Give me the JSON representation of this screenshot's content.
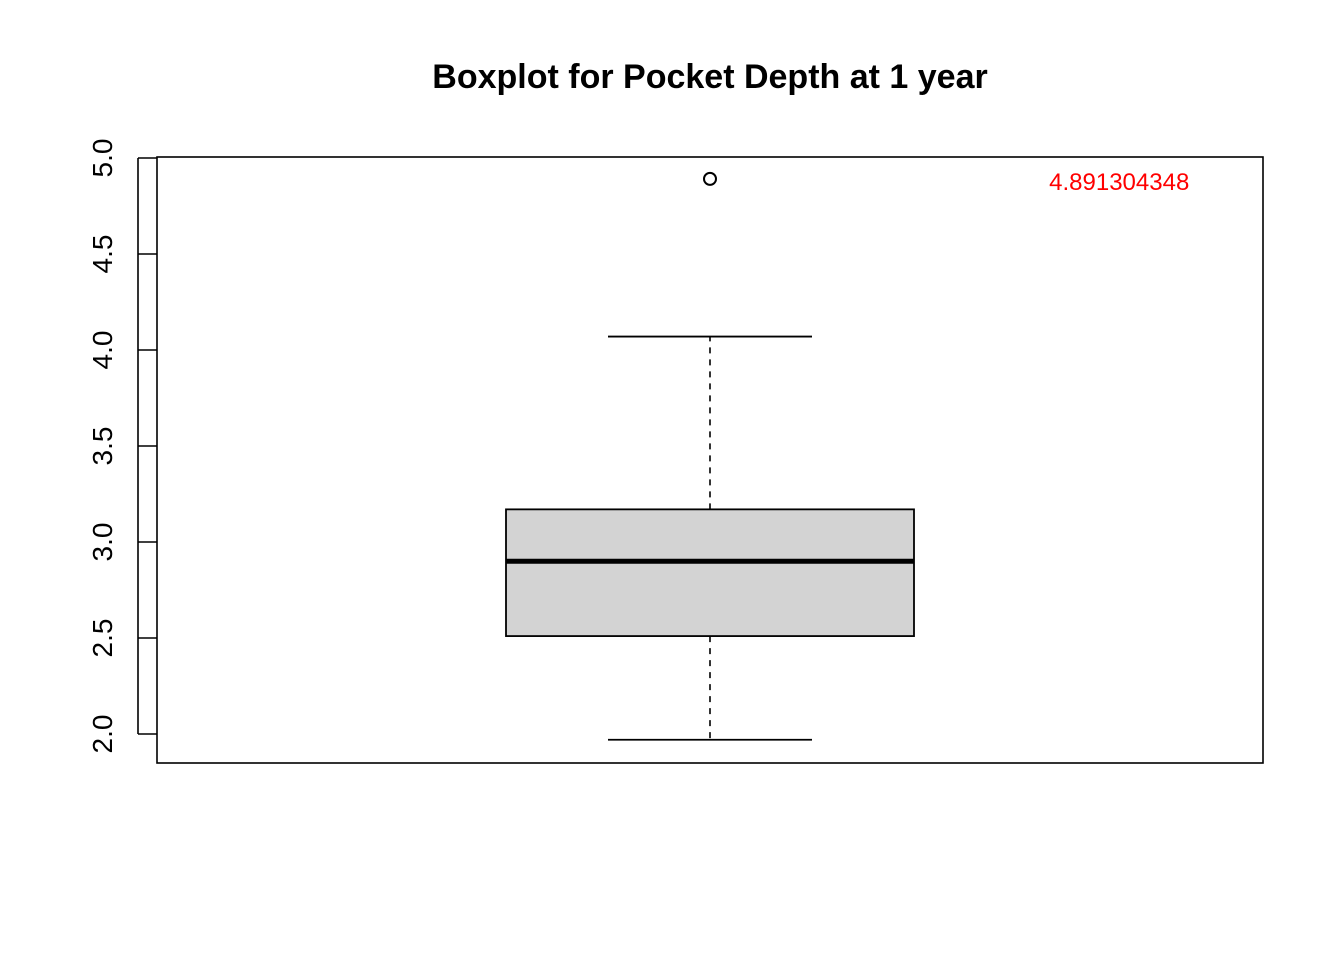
{
  "chart_data": {
    "type": "boxplot",
    "title": "Boxplot for Pocket Depth at 1 year",
    "xlabel": "",
    "ylabel": "",
    "ylim": [
      1.85,
      5.0
    ],
    "y_ticks": [
      2.0,
      2.5,
      3.0,
      3.5,
      4.0,
      4.5,
      5.0
    ],
    "y_tick_labels": [
      "2.0",
      "2.5",
      "3.0",
      "3.5",
      "4.0",
      "4.5",
      "5.0"
    ],
    "grid": false,
    "series": [
      {
        "whisker_low": 1.97,
        "q1": 2.51,
        "median": 2.9,
        "q3": 3.17,
        "whisker_high": 4.07,
        "outliers": [
          4.891304348
        ]
      }
    ],
    "annotations": [
      {
        "text": "4.891304348",
        "x": 1.37,
        "y": 4.88,
        "color": "#ff0000"
      }
    ],
    "colors": {
      "box_fill": "#d3d3d3",
      "stroke": "#000000",
      "annotation": "#ff0000"
    }
  }
}
